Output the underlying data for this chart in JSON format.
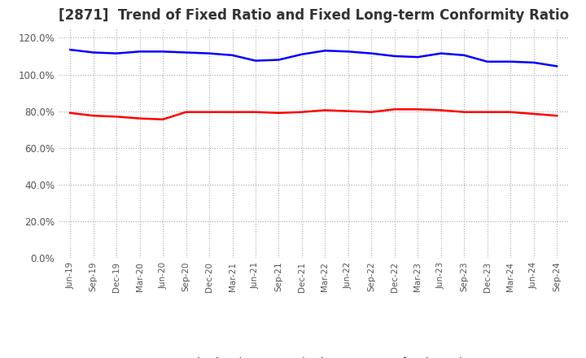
{
  "title": "[2871]  Trend of Fixed Ratio and Fixed Long-term Conformity Ratio",
  "x_labels": [
    "Jun-19",
    "Sep-19",
    "Dec-19",
    "Mar-20",
    "Jun-20",
    "Sep-20",
    "Dec-20",
    "Mar-21",
    "Jun-21",
    "Sep-21",
    "Dec-21",
    "Mar-22",
    "Jun-22",
    "Sep-22",
    "Dec-22",
    "Mar-23",
    "Jun-23",
    "Sep-23",
    "Dec-23",
    "Mar-24",
    "Jun-24",
    "Sep-24"
  ],
  "fixed_ratio": [
    113.5,
    112.0,
    111.5,
    112.5,
    112.5,
    112.0,
    111.5,
    110.5,
    107.5,
    108.0,
    111.0,
    113.0,
    112.5,
    111.5,
    110.0,
    109.5,
    111.5,
    110.5,
    107.0,
    107.0,
    106.5,
    104.5
  ],
  "fixed_lt_ratio": [
    79.0,
    77.5,
    77.0,
    76.0,
    75.5,
    79.5,
    79.5,
    79.5,
    79.5,
    79.0,
    79.5,
    80.5,
    80.0,
    79.5,
    81.0,
    81.0,
    80.5,
    79.5,
    79.5,
    79.5,
    78.5,
    77.5
  ],
  "fixed_ratio_color": "#0000ff",
  "fixed_lt_ratio_color": "#ff0000",
  "ylim": [
    0,
    125
  ],
  "yticks": [
    0,
    20,
    40,
    60,
    80,
    100,
    120
  ],
  "ytick_labels": [
    "0.0%",
    "20.0%",
    "40.0%",
    "60.0%",
    "80.0%",
    "100.0%",
    "120.0%"
  ],
  "background_color": "#ffffff",
  "grid_color": "#aaaaaa",
  "title_fontsize": 12,
  "legend_labels": [
    "Fixed Ratio",
    "Fixed Long-term Conformity Ratio"
  ]
}
